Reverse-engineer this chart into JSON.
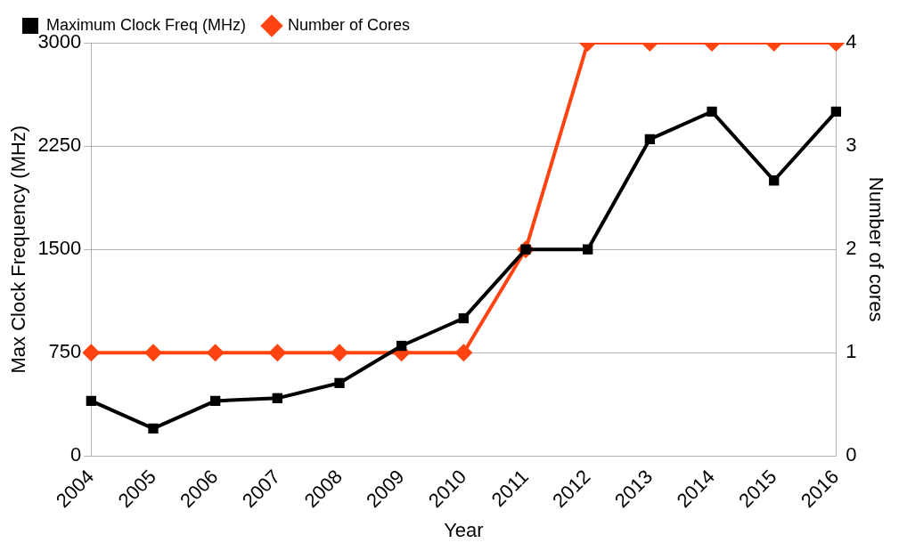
{
  "chart_data": {
    "type": "line",
    "xlabel": "Year",
    "ylabel": "Max Clock Frequency (MHz)",
    "y2label": "Number of cores",
    "categories": [
      "2004",
      "2005",
      "2006",
      "2007",
      "2008",
      "2009",
      "2010",
      "2011",
      "2012",
      "2013",
      "2014",
      "2015",
      "2016"
    ],
    "series": [
      {
        "name": "Maximum Clock Freq (MHz)",
        "color": "#000000",
        "marker": "square",
        "values": [
          400,
          200,
          400,
          420,
          530,
          800,
          1000,
          1500,
          1500,
          2300,
          2500,
          2000,
          2500
        ]
      },
      {
        "name": "Number of Cores",
        "color": "#ff4411",
        "marker": "diamond",
        "axis": "y2",
        "values": [
          1,
          1,
          1,
          1,
          1,
          1,
          1,
          2,
          4,
          4,
          4,
          4,
          4
        ]
      }
    ],
    "ylim": [
      0,
      3000
    ],
    "yticks": [
      0,
      750,
      1500,
      2250,
      3000
    ],
    "y2lim": [
      0,
      4
    ],
    "y2ticks": [
      0,
      1,
      2,
      3,
      4
    ],
    "grid": "y",
    "legend": "top left",
    "line_style": "solid"
  }
}
